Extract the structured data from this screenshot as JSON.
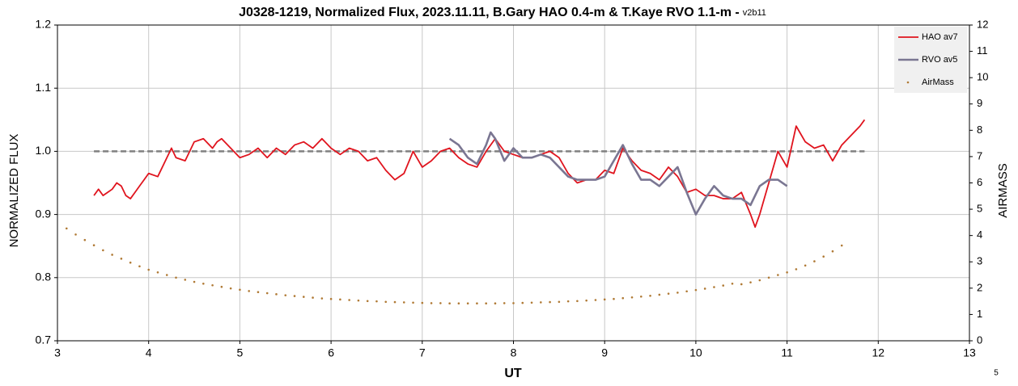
{
  "chart_data": {
    "type": "line",
    "title": "J0328-1219, Normalized Flux, 2023.11.11, B.Gary HAO 0.4-m & T.Kaye RVO 1.1-m -",
    "version": "v2b11",
    "x_label": "UT",
    "y_label": "NORMALIZED FLUX",
    "y2_label": "AIRMASS",
    "page_number": "5",
    "xlim": [
      3,
      13
    ],
    "xticks": [
      3,
      4,
      5,
      6,
      7,
      8,
      9,
      10,
      11,
      12,
      13
    ],
    "ylim": [
      0.7,
      1.2
    ],
    "yticks": [
      0.7,
      0.8,
      0.9,
      {
        "value": 1,
        "label": "1.0"
      },
      1.1,
      1.2
    ],
    "y2lim": [
      0,
      12
    ],
    "y2ticks": [
      0,
      1,
      2,
      3,
      4,
      5,
      6,
      7,
      8,
      9,
      10,
      11,
      12
    ],
    "grid": true,
    "legend": "top-right",
    "hline": {
      "y": 1,
      "x": [
        3.4,
        11.85
      ],
      "color": "#808080"
    },
    "series": [
      {
        "name": "HAO av7",
        "color": "#e0141e",
        "type": "line",
        "x": [
          3.4,
          3.45,
          3.5,
          3.55,
          3.6,
          3.65,
          3.7,
          3.75,
          3.8,
          3.85,
          3.9,
          3.95,
          4.0,
          4.1,
          4.2,
          4.25,
          4.3,
          4.4,
          4.5,
          4.6,
          4.7,
          4.75,
          4.8,
          4.9,
          5.0,
          5.1,
          5.2,
          5.3,
          5.4,
          5.5,
          5.6,
          5.7,
          5.8,
          5.9,
          6.0,
          6.1,
          6.2,
          6.3,
          6.4,
          6.5,
          6.6,
          6.7,
          6.8,
          6.9,
          7.0,
          7.1,
          7.2,
          7.3,
          7.4,
          7.5,
          7.6,
          7.7,
          7.8,
          7.9,
          8.0,
          8.1,
          8.2,
          8.3,
          8.4,
          8.5,
          8.6,
          8.7,
          8.8,
          8.9,
          9.0,
          9.1,
          9.2,
          9.3,
          9.4,
          9.5,
          9.6,
          9.7,
          9.8,
          9.9,
          10.0,
          10.1,
          10.2,
          10.3,
          10.4,
          10.5,
          10.6,
          10.65,
          10.7,
          10.8,
          10.9,
          11.0,
          11.1,
          11.2,
          11.3,
          11.4,
          11.5,
          11.6,
          11.7,
          11.8,
          11.85
        ],
        "values": [
          0.93,
          0.94,
          0.93,
          0.935,
          0.94,
          0.95,
          0.945,
          0.93,
          0.925,
          0.935,
          0.945,
          0.955,
          0.965,
          0.96,
          0.99,
          1.005,
          0.99,
          0.985,
          1.015,
          1.02,
          1.005,
          1.015,
          1.02,
          1.005,
          0.99,
          0.995,
          1.005,
          0.99,
          1.005,
          0.995,
          1.01,
          1.015,
          1.005,
          1.02,
          1.005,
          0.995,
          1.005,
          1.0,
          0.985,
          0.99,
          0.97,
          0.955,
          0.965,
          1.0,
          0.975,
          0.985,
          1.0,
          1.005,
          0.99,
          0.98,
          0.975,
          1.0,
          1.02,
          1.0,
          0.995,
          0.99,
          0.99,
          0.995,
          1.0,
          0.99,
          0.965,
          0.95,
          0.955,
          0.955,
          0.97,
          0.965,
          1.005,
          0.985,
          0.97,
          0.965,
          0.955,
          0.975,
          0.96,
          0.935,
          0.94,
          0.93,
          0.93,
          0.925,
          0.925,
          0.935,
          0.9,
          0.88,
          0.9,
          0.95,
          1.0,
          0.975,
          1.04,
          1.015,
          1.005,
          1.01,
          0.985,
          1.01,
          1.025,
          1.04,
          1.05
        ]
      },
      {
        "name": "RVO av5",
        "color": "#7a7692",
        "type": "line",
        "x": [
          7.3,
          7.4,
          7.5,
          7.6,
          7.7,
          7.75,
          7.8,
          7.9,
          8.0,
          8.1,
          8.2,
          8.3,
          8.4,
          8.5,
          8.6,
          8.7,
          8.8,
          8.9,
          9.0,
          9.1,
          9.2,
          9.3,
          9.4,
          9.5,
          9.6,
          9.7,
          9.8,
          9.9,
          10.0,
          10.1,
          10.2,
          10.3,
          10.4,
          10.5,
          10.6,
          10.7,
          10.8,
          10.9,
          11.0
        ],
        "values": [
          1.02,
          1.01,
          0.99,
          0.98,
          1.01,
          1.03,
          1.02,
          0.985,
          1.005,
          0.99,
          0.99,
          0.995,
          0.99,
          0.975,
          0.96,
          0.955,
          0.955,
          0.955,
          0.96,
          0.985,
          1.01,
          0.98,
          0.955,
          0.955,
          0.945,
          0.96,
          0.975,
          0.935,
          0.9,
          0.925,
          0.945,
          0.93,
          0.925,
          0.925,
          0.915,
          0.945,
          0.955,
          0.955,
          0.945
        ]
      },
      {
        "name": "AirMass",
        "color": "#b07a35",
        "type": "scatter",
        "axis": "y2",
        "x": [
          3.1,
          3.2,
          3.3,
          3.4,
          3.5,
          3.6,
          3.7,
          3.8,
          3.9,
          4.0,
          4.1,
          4.2,
          4.3,
          4.4,
          4.5,
          4.6,
          4.7,
          4.8,
          4.9,
          5.0,
          5.1,
          5.2,
          5.3,
          5.4,
          5.5,
          5.6,
          5.7,
          5.8,
          5.9,
          6.0,
          6.1,
          6.2,
          6.3,
          6.4,
          6.5,
          6.6,
          6.7,
          6.8,
          6.9,
          7.0,
          7.1,
          7.2,
          7.3,
          7.4,
          7.5,
          7.6,
          7.7,
          7.8,
          7.9,
          8.0,
          8.1,
          8.2,
          8.3,
          8.4,
          8.5,
          8.6,
          8.7,
          8.8,
          8.9,
          9.0,
          9.1,
          9.2,
          9.3,
          9.4,
          9.5,
          9.6,
          9.7,
          9.8,
          9.9,
          10.0,
          10.1,
          10.2,
          10.3,
          10.4,
          10.5,
          10.6,
          10.7,
          10.8,
          10.9,
          11.0,
          11.1,
          11.2,
          11.3,
          11.4,
          11.5,
          11.6
        ],
        "values": [
          4.27,
          4.04,
          3.83,
          3.63,
          3.44,
          3.27,
          3.12,
          2.97,
          2.83,
          2.7,
          2.6,
          2.5,
          2.4,
          2.32,
          2.24,
          2.17,
          2.11,
          2.05,
          1.99,
          1.94,
          1.89,
          1.85,
          1.81,
          1.77,
          1.73,
          1.7,
          1.67,
          1.64,
          1.61,
          1.59,
          1.57,
          1.55,
          1.53,
          1.51,
          1.5,
          1.48,
          1.47,
          1.46,
          1.45,
          1.44,
          1.43,
          1.43,
          1.42,
          1.42,
          1.42,
          1.42,
          1.42,
          1.42,
          1.43,
          1.43,
          1.44,
          1.45,
          1.46,
          1.47,
          1.48,
          1.5,
          1.51,
          1.53,
          1.55,
          1.57,
          1.59,
          1.62,
          1.65,
          1.68,
          1.71,
          1.75,
          1.79,
          1.83,
          1.88,
          1.93,
          1.98,
          2.04,
          2.1,
          2.17,
          2.15,
          2.22,
          2.3,
          2.4,
          2.5,
          2.6,
          2.72,
          2.86,
          3.02,
          3.2,
          3.4,
          3.62
        ]
      }
    ]
  }
}
